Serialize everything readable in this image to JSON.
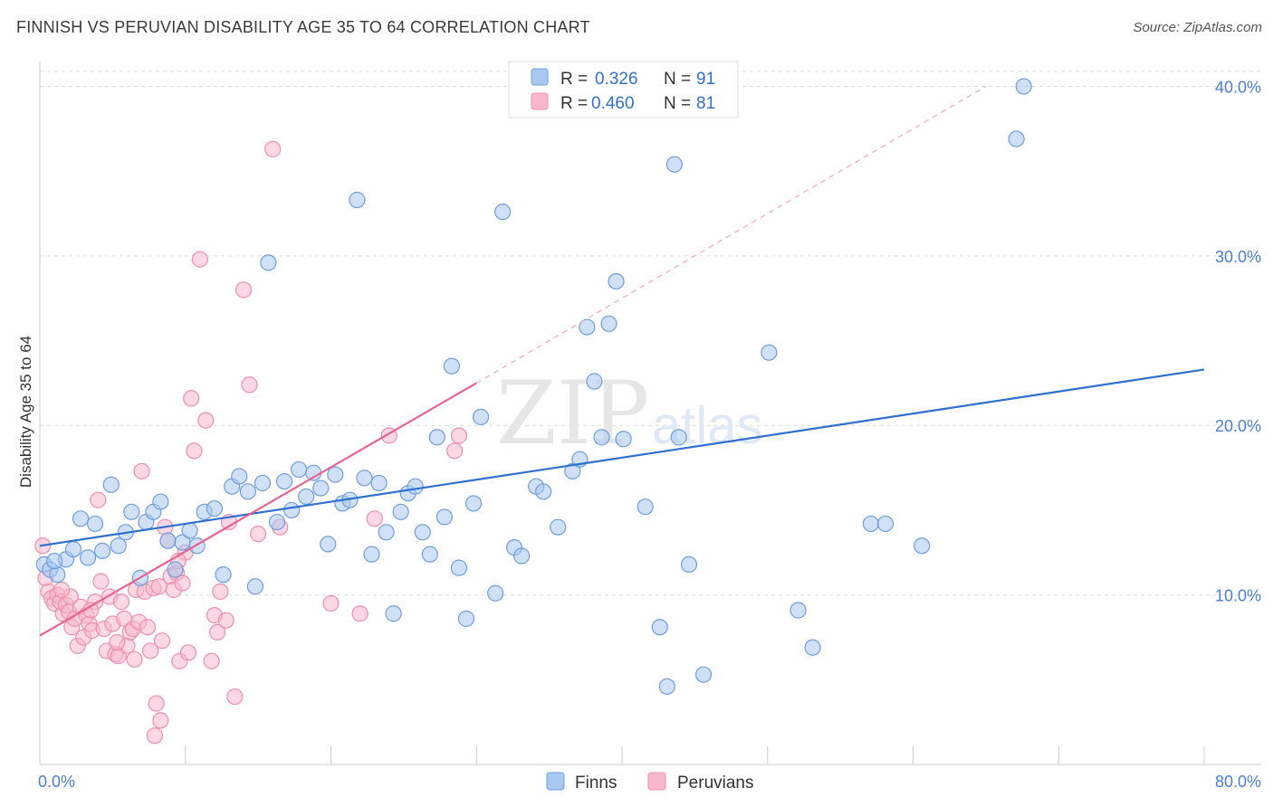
{
  "header": {
    "title": "FINNISH VS PERUVIAN DISABILITY AGE 35 TO 64 CORRELATION CHART",
    "source": "Source: ZipAtlas.com"
  },
  "watermark": {
    "zip": "ZIP",
    "atlas": "atlas"
  },
  "legend": {
    "r_label": "R =",
    "n_label": "N =",
    "finns": {
      "r": "0.326",
      "n": "91"
    },
    "peruvians": {
      "r": "0.460",
      "n": "81"
    }
  },
  "colors": {
    "finns_fill": "#a9c8f0",
    "finns_stroke": "#6f9ede",
    "finns_line": "#2f6fd0",
    "peru_fill": "#f7b8cc",
    "peru_stroke": "#ee8fae",
    "peru_line": "#e8638f"
  },
  "chart_data": {
    "type": "scatter",
    "title": "FINNISH VS PERUVIAN DISABILITY AGE 35 TO 64 CORRELATION CHART",
    "xlabel": "",
    "ylabel": "Disability Age 35 to 64",
    "xlim": [
      0,
      80
    ],
    "ylim": [
      0,
      42
    ],
    "x_tick_labels": [
      "0.0%",
      "80.0%"
    ],
    "y_ticks": [
      10,
      20,
      30,
      40
    ],
    "y_tick_labels": [
      "10.0%",
      "20.0%",
      "30.0%",
      "40.0%"
    ],
    "legend_bottom": [
      "Finns",
      "Peruvians"
    ],
    "series": [
      {
        "name": "Finns",
        "r": 0.326,
        "n": 91,
        "trend": {
          "x": [
            0,
            80
          ],
          "y": [
            12.9,
            23.3
          ]
        },
        "points": [
          [
            0.3,
            11.8
          ],
          [
            0.7,
            11.5
          ],
          [
            1.2,
            11.2
          ],
          [
            1.8,
            12.1
          ],
          [
            2.3,
            12.7
          ],
          [
            2.8,
            14.5
          ],
          [
            3.3,
            12.2
          ],
          [
            3.8,
            14.2
          ],
          [
            4.3,
            12.6
          ],
          [
            4.9,
            16.5
          ],
          [
            5.4,
            12.9
          ],
          [
            5.9,
            13.7
          ],
          [
            6.3,
            14.9
          ],
          [
            6.9,
            11.0
          ],
          [
            7.3,
            14.3
          ],
          [
            7.8,
            14.9
          ],
          [
            8.3,
            15.5
          ],
          [
            8.8,
            13.2
          ],
          [
            9.3,
            11.5
          ],
          [
            9.8,
            13.1
          ],
          [
            10.3,
            13.8
          ],
          [
            10.8,
            12.9
          ],
          [
            11.3,
            14.9
          ],
          [
            12.0,
            15.1
          ],
          [
            12.6,
            11.2
          ],
          [
            13.2,
            16.4
          ],
          [
            13.7,
            17.0
          ],
          [
            14.3,
            16.1
          ],
          [
            14.8,
            10.5
          ],
          [
            15.3,
            16.6
          ],
          [
            15.7,
            29.6
          ],
          [
            16.3,
            14.3
          ],
          [
            16.8,
            16.7
          ],
          [
            17.3,
            15.0
          ],
          [
            17.8,
            17.4
          ],
          [
            18.3,
            15.8
          ],
          [
            18.8,
            17.2
          ],
          [
            19.3,
            16.3
          ],
          [
            19.8,
            13.0
          ],
          [
            20.3,
            17.1
          ],
          [
            20.8,
            15.4
          ],
          [
            21.3,
            15.6
          ],
          [
            21.8,
            33.3
          ],
          [
            22.3,
            16.9
          ],
          [
            22.8,
            12.4
          ],
          [
            23.3,
            16.6
          ],
          [
            23.8,
            13.7
          ],
          [
            24.3,
            8.9
          ],
          [
            24.8,
            14.9
          ],
          [
            25.3,
            16.0
          ],
          [
            25.8,
            16.4
          ],
          [
            26.3,
            13.7
          ],
          [
            26.8,
            12.4
          ],
          [
            27.3,
            19.3
          ],
          [
            27.8,
            14.6
          ],
          [
            28.3,
            23.5
          ],
          [
            28.8,
            11.6
          ],
          [
            29.3,
            8.6
          ],
          [
            29.8,
            15.4
          ],
          [
            30.3,
            20.5
          ],
          [
            31.3,
            10.1
          ],
          [
            31.8,
            32.6
          ],
          [
            32.6,
            12.8
          ],
          [
            33.1,
            12.3
          ],
          [
            34.1,
            16.4
          ],
          [
            34.6,
            16.1
          ],
          [
            35.6,
            14.0
          ],
          [
            36.6,
            17.3
          ],
          [
            37.1,
            18.0
          ],
          [
            37.6,
            25.8
          ],
          [
            38.1,
            22.6
          ],
          [
            38.6,
            19.3
          ],
          [
            39.1,
            26.0
          ],
          [
            39.6,
            28.5
          ],
          [
            40.1,
            19.2
          ],
          [
            41.6,
            15.2
          ],
          [
            42.6,
            8.1
          ],
          [
            43.1,
            4.6
          ],
          [
            43.6,
            35.4
          ],
          [
            43.9,
            19.3
          ],
          [
            44.6,
            11.8
          ],
          [
            45.6,
            5.3
          ],
          [
            50.1,
            24.3
          ],
          [
            52.1,
            9.1
          ],
          [
            53.1,
            6.9
          ],
          [
            57.1,
            14.2
          ],
          [
            58.1,
            14.2
          ],
          [
            60.6,
            12.9
          ],
          [
            67.1,
            36.9
          ],
          [
            67.6,
            40.0
          ],
          [
            1.0,
            12.0
          ]
        ]
      },
      {
        "name": "Peruvians",
        "r": 0.46,
        "n": 81,
        "trend": {
          "x": [
            0,
            30
          ],
          "y": [
            7.6,
            22.5
          ]
        },
        "trend_extension": {
          "x": [
            30,
            65
          ],
          "y": [
            22.5,
            40.0
          ]
        },
        "points": [
          [
            0.2,
            12.9
          ],
          [
            0.4,
            11.0
          ],
          [
            0.6,
            10.2
          ],
          [
            0.8,
            9.8
          ],
          [
            1.0,
            9.5
          ],
          [
            1.2,
            10.0
          ],
          [
            1.4,
            9.6
          ],
          [
            1.6,
            8.9
          ],
          [
            1.8,
            9.4
          ],
          [
            2.0,
            9.0
          ],
          [
            2.2,
            8.1
          ],
          [
            2.4,
            8.6
          ],
          [
            2.6,
            7.0
          ],
          [
            2.8,
            9.3
          ],
          [
            3.0,
            7.5
          ],
          [
            3.2,
            8.8
          ],
          [
            3.4,
            8.3
          ],
          [
            3.6,
            7.9
          ],
          [
            3.8,
            9.6
          ],
          [
            4.0,
            15.6
          ],
          [
            4.2,
            10.8
          ],
          [
            4.4,
            8.0
          ],
          [
            4.6,
            6.7
          ],
          [
            4.8,
            9.9
          ],
          [
            5.0,
            8.3
          ],
          [
            5.2,
            6.5
          ],
          [
            5.4,
            6.4
          ],
          [
            5.6,
            9.6
          ],
          [
            5.8,
            8.6
          ],
          [
            6.0,
            7.0
          ],
          [
            6.2,
            7.8
          ],
          [
            6.4,
            8.0
          ],
          [
            6.6,
            10.3
          ],
          [
            6.8,
            8.4
          ],
          [
            7.0,
            17.3
          ],
          [
            7.2,
            10.2
          ],
          [
            7.4,
            8.1
          ],
          [
            7.6,
            6.7
          ],
          [
            7.8,
            10.4
          ],
          [
            8.0,
            3.6
          ],
          [
            8.2,
            10.5
          ],
          [
            8.4,
            7.3
          ],
          [
            8.6,
            14.0
          ],
          [
            8.8,
            13.2
          ],
          [
            9.0,
            11.1
          ],
          [
            9.2,
            10.3
          ],
          [
            9.4,
            11.3
          ],
          [
            9.6,
            6.1
          ],
          [
            9.8,
            10.7
          ],
          [
            10.0,
            12.5
          ],
          [
            10.2,
            6.6
          ],
          [
            10.4,
            21.6
          ],
          [
            10.6,
            18.5
          ],
          [
            11.0,
            29.8
          ],
          [
            11.4,
            20.3
          ],
          [
            11.8,
            6.1
          ],
          [
            12.0,
            8.8
          ],
          [
            12.2,
            7.8
          ],
          [
            12.4,
            10.2
          ],
          [
            13.0,
            14.3
          ],
          [
            13.4,
            4.0
          ],
          [
            14.0,
            28.0
          ],
          [
            14.4,
            22.4
          ],
          [
            15.0,
            13.6
          ],
          [
            16.0,
            36.3
          ],
          [
            16.5,
            14.0
          ],
          [
            20.0,
            9.5
          ],
          [
            22.0,
            8.9
          ],
          [
            23.0,
            14.5
          ],
          [
            24.0,
            19.4
          ],
          [
            28.5,
            18.5
          ],
          [
            28.8,
            19.4
          ],
          [
            6.5,
            6.2
          ],
          [
            2.1,
            9.9
          ],
          [
            3.5,
            9.1
          ],
          [
            5.3,
            7.2
          ],
          [
            8.3,
            2.6
          ],
          [
            9.5,
            12.0
          ],
          [
            7.9,
            1.7
          ],
          [
            12.8,
            8.5
          ],
          [
            1.5,
            10.3
          ]
        ]
      }
    ]
  }
}
